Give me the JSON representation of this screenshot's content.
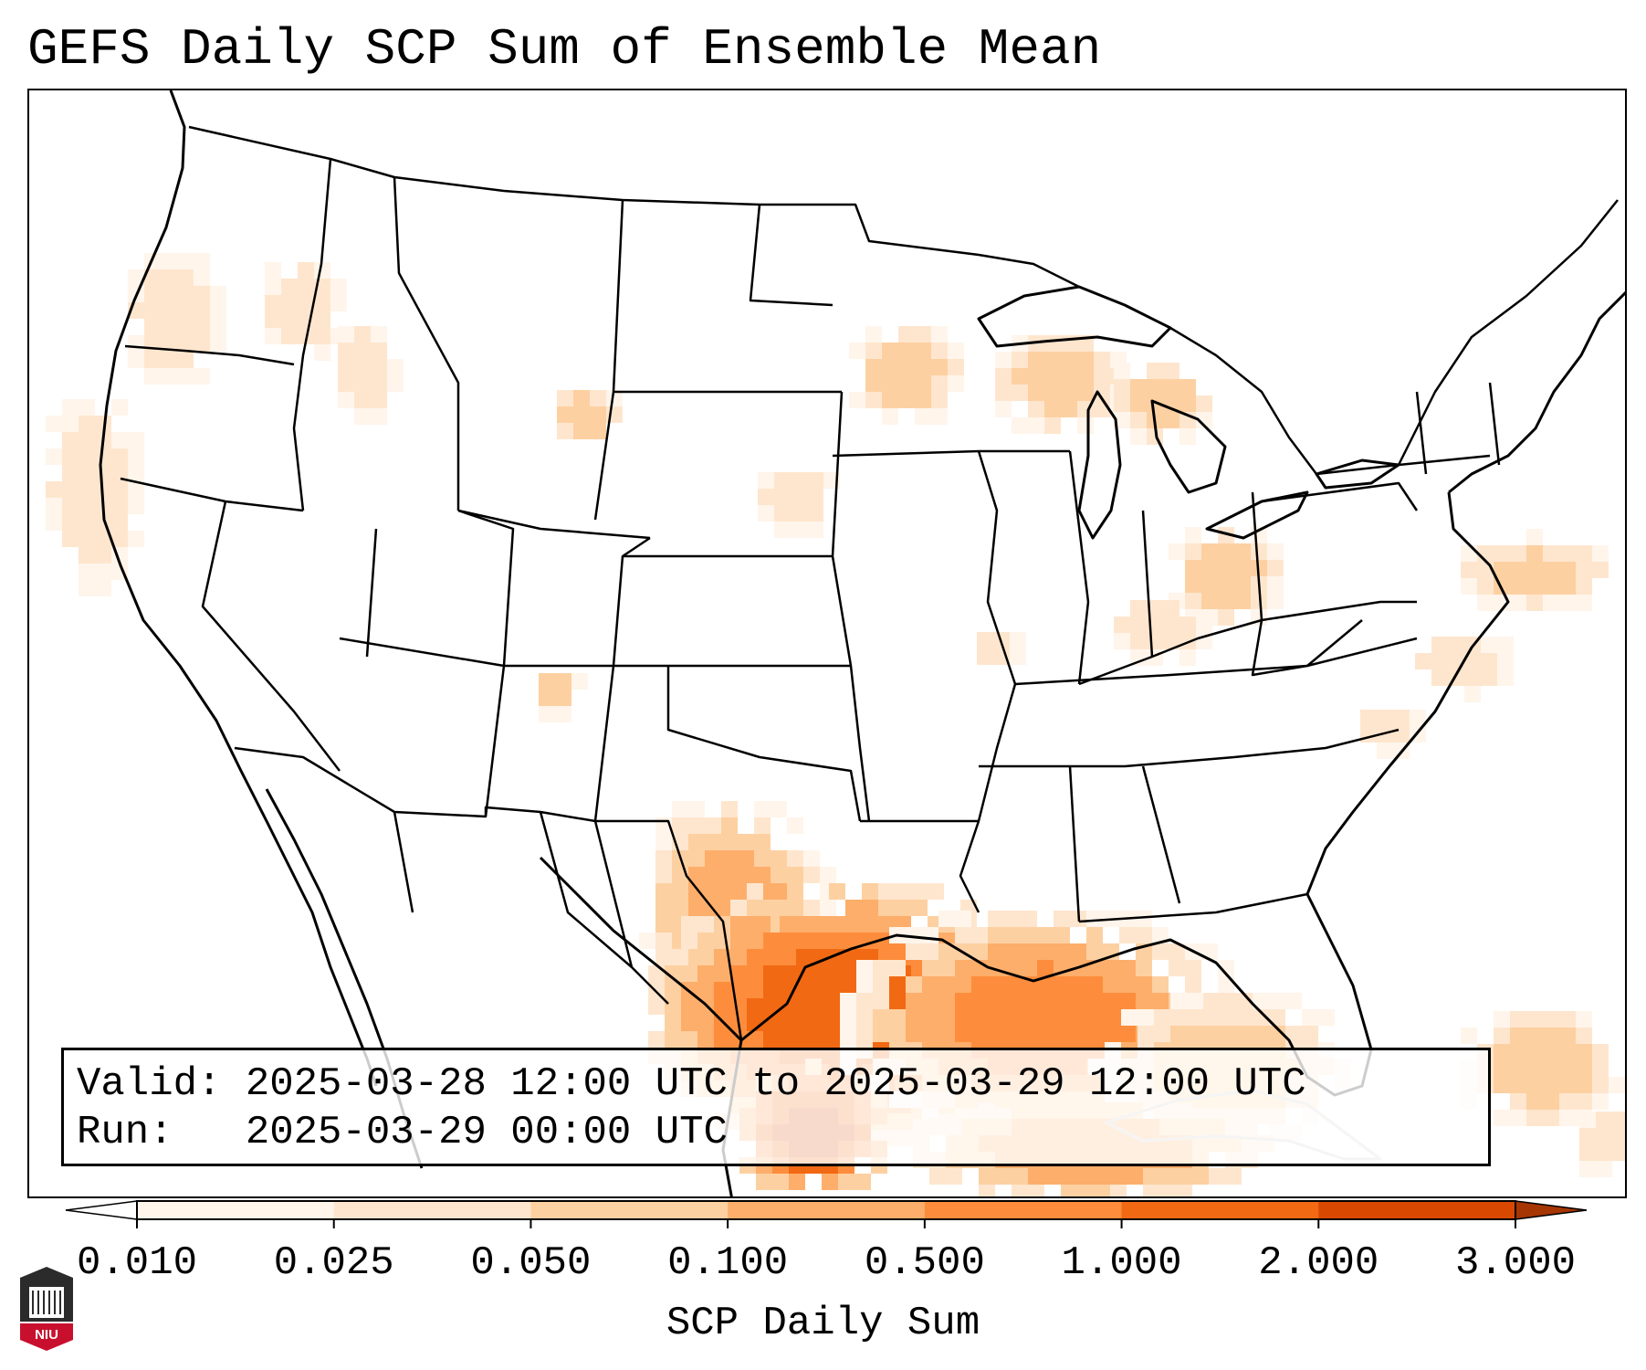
{
  "title": "GEFS Daily SCP Sum of Ensemble Mean",
  "info": {
    "valid_label": "Valid:",
    "valid_value": "2025-03-28 12:00 UTC to 2025-03-29 12:00 UTC",
    "run_label": "Run:",
    "run_value": "2025-03-29 00:00 UTC"
  },
  "colorbar": {
    "label": "SCP Daily Sum",
    "ticks": [
      "0.010",
      "0.025",
      "0.050",
      "0.100",
      "0.500",
      "1.000",
      "2.000",
      "3.000"
    ],
    "colors": [
      "#fff5eb",
      "#fee6ce",
      "#fdd0a2",
      "#fdae6b",
      "#fd8d3c",
      "#f16913",
      "#d94801"
    ],
    "under_color": "#ffffff",
    "over_color": "#a63603"
  },
  "logo": {
    "text": "NIU"
  }
}
